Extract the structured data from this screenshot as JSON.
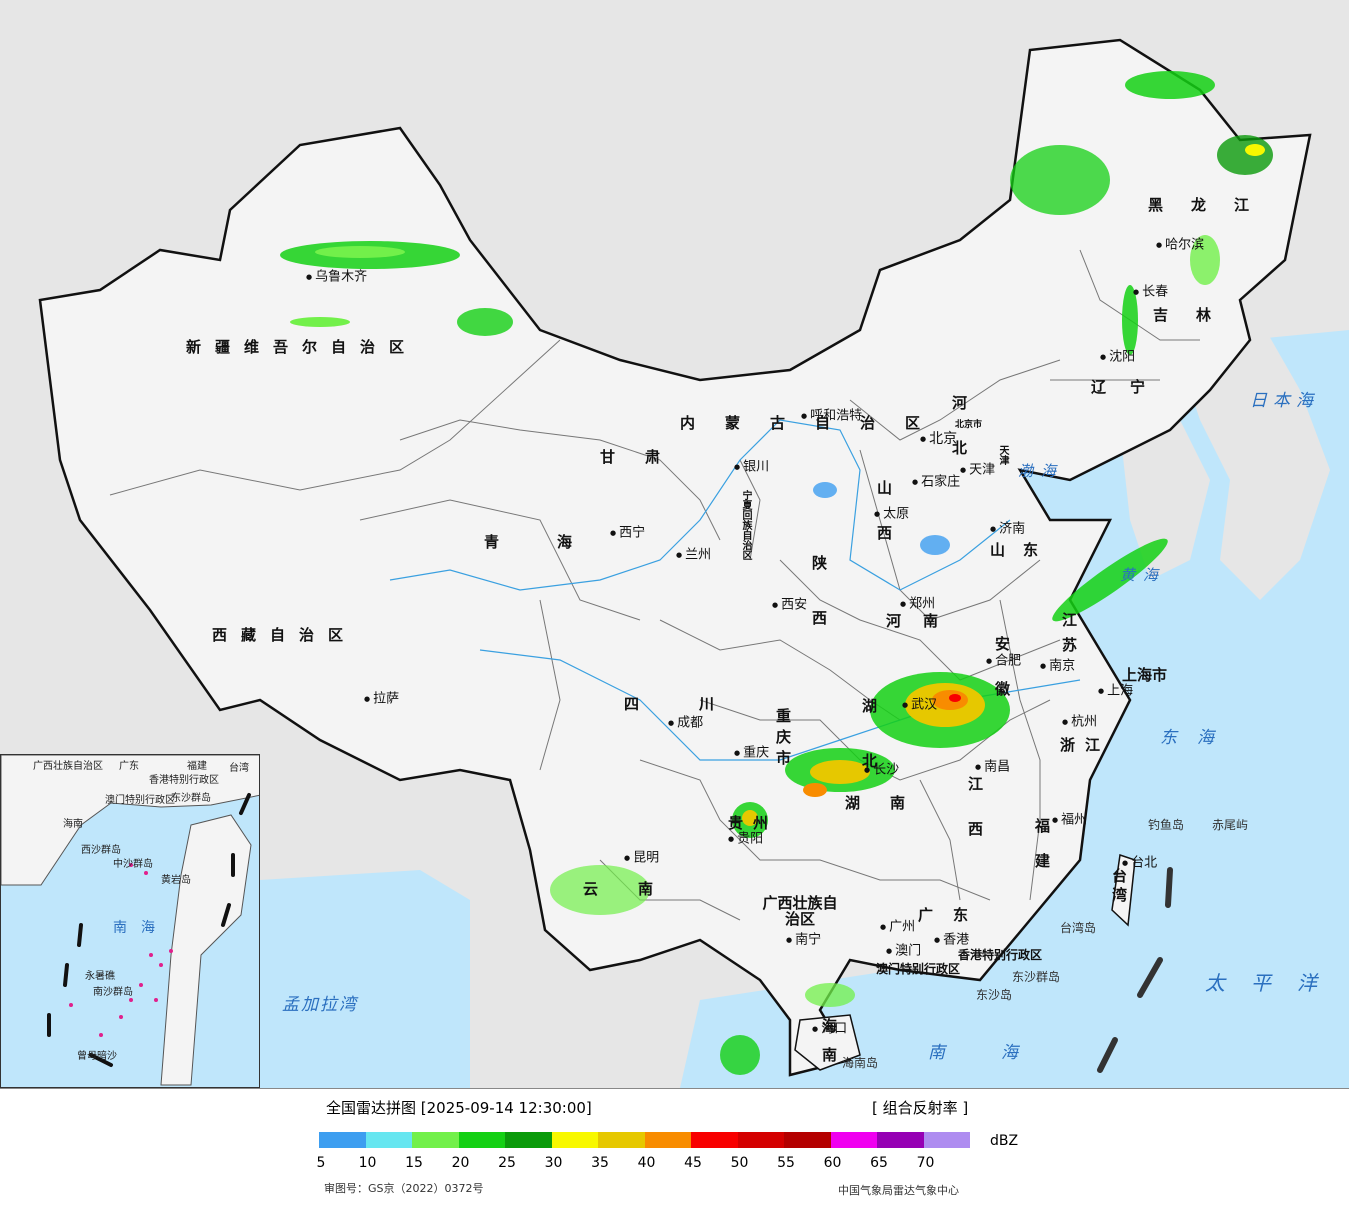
{
  "map": {
    "provinces": [
      {
        "id": "xinjiang",
        "label": "新疆维吾尔自治区"
      },
      {
        "id": "xizang",
        "label": "西藏自治区"
      },
      {
        "id": "qinghai",
        "label": "青海"
      },
      {
        "id": "gansu",
        "label": "甘肃"
      },
      {
        "id": "neimenggu",
        "label": "内蒙古自治区"
      },
      {
        "id": "heilongjiang",
        "label": "黑龙江"
      },
      {
        "id": "jilin",
        "label": "吉林"
      },
      {
        "id": "liaoning",
        "label": "辽宁"
      },
      {
        "id": "hebei",
        "label": "河北"
      },
      {
        "id": "shanxi",
        "label": "山西"
      },
      {
        "id": "shandong",
        "label": "山东"
      },
      {
        "id": "henan",
        "label": "河南"
      },
      {
        "id": "shaanxi",
        "label": "陕西"
      },
      {
        "id": "ningxia",
        "label": "宁夏回族自治区"
      },
      {
        "id": "sichuan",
        "label": "四川"
      },
      {
        "id": "chongqing",
        "label": "重庆市"
      },
      {
        "id": "hubei",
        "label": "湖北"
      },
      {
        "id": "hunan",
        "label": "湖南"
      },
      {
        "id": "jiangxi",
        "label": "江西"
      },
      {
        "id": "anhui",
        "label": "安徽"
      },
      {
        "id": "jiangsu",
        "label": "江苏"
      },
      {
        "id": "shanghai",
        "label": "上海市"
      },
      {
        "id": "zhejiang",
        "label": "浙江"
      },
      {
        "id": "fujian",
        "label": "福建"
      },
      {
        "id": "guizhou",
        "label": "贵州"
      },
      {
        "id": "yunnan",
        "label": "云南"
      },
      {
        "id": "guangxi",
        "label": "广西壮族自治区"
      },
      {
        "id": "guangdong",
        "label": "广东"
      },
      {
        "id": "hainan",
        "label": "海南"
      },
      {
        "id": "taiwan",
        "label": "台湾"
      },
      {
        "id": "hk",
        "label": "香港特别行政区"
      },
      {
        "id": "macau",
        "label": "澳门特别行政区"
      },
      {
        "id": "beijingshi",
        "label": "北京市"
      },
      {
        "id": "tianjinshi",
        "label": "天津"
      }
    ],
    "cities": [
      {
        "id": "urumqi",
        "label": "乌鲁木齐"
      },
      {
        "id": "lhasa",
        "label": "拉萨"
      },
      {
        "id": "xining",
        "label": "西宁"
      },
      {
        "id": "lanzhou",
        "label": "兰州"
      },
      {
        "id": "yinchuan",
        "label": "银川"
      },
      {
        "id": "hohhot",
        "label": "呼和浩特"
      },
      {
        "id": "beijing",
        "label": "北京"
      },
      {
        "id": "tianjin",
        "label": "天津"
      },
      {
        "id": "shijiazhuang",
        "label": "石家庄"
      },
      {
        "id": "taiyuan",
        "label": "太原"
      },
      {
        "id": "jinan",
        "label": "济南"
      },
      {
        "id": "zhengzhou",
        "label": "郑州"
      },
      {
        "id": "xian",
        "label": "西安"
      },
      {
        "id": "chengdu",
        "label": "成都"
      },
      {
        "id": "chongqing",
        "label": "重庆"
      },
      {
        "id": "wuhan",
        "label": "武汉"
      },
      {
        "id": "changsha",
        "label": "长沙"
      },
      {
        "id": "nanchang",
        "label": "南昌"
      },
      {
        "id": "hefei",
        "label": "合肥"
      },
      {
        "id": "nanjing",
        "label": "南京"
      },
      {
        "id": "shanghai",
        "label": "上海"
      },
      {
        "id": "hangzhou",
        "label": "杭州"
      },
      {
        "id": "fuzhou",
        "label": "福州"
      },
      {
        "id": "guiyang",
        "label": "贵阳"
      },
      {
        "id": "kunming",
        "label": "昆明"
      },
      {
        "id": "nanning",
        "label": "南宁"
      },
      {
        "id": "guangzhou",
        "label": "广州"
      },
      {
        "id": "hongkong",
        "label": "香港"
      },
      {
        "id": "macau",
        "label": "澳门"
      },
      {
        "id": "haikou",
        "label": "海口"
      },
      {
        "id": "taipei",
        "label": "台北"
      },
      {
        "id": "harbin",
        "label": "哈尔滨"
      },
      {
        "id": "changchun",
        "label": "长春"
      },
      {
        "id": "shenyang",
        "label": "沈阳"
      }
    ],
    "seas": [
      {
        "id": "japan",
        "label": "日本海"
      },
      {
        "id": "bohai",
        "label": "渤海"
      },
      {
        "id": "yellow",
        "label": "黄海"
      },
      {
        "id": "east",
        "label": "东海"
      },
      {
        "id": "pacific",
        "label": "太平洋"
      },
      {
        "id": "south",
        "label": "南海"
      },
      {
        "id": "bengal",
        "label": "孟加拉湾"
      }
    ],
    "islands": [
      {
        "id": "diaoyu",
        "label": "钓鱼岛"
      },
      {
        "id": "chiwei",
        "label": "赤尾屿"
      },
      {
        "id": "dongsha_grp",
        "label": "东沙群岛"
      },
      {
        "id": "dongsha",
        "label": "东沙岛"
      },
      {
        "id": "taiwan_isl",
        "label": "台湾岛"
      },
      {
        "id": "hainan_isl",
        "label": "海南岛"
      }
    ],
    "inset": {
      "labels": [
        "广西壮族自治区",
        "广东",
        "福建",
        "台湾",
        "香港特别行政区",
        "澳门特别行政区",
        "东沙群岛",
        "海南",
        "西沙群岛",
        "中沙群岛",
        "黄岩岛",
        "南海",
        "永暑礁",
        "南沙群岛",
        "曾母暗沙"
      ]
    },
    "colors": {
      "land": "#f4f4f4",
      "outside": "#e6e6e6",
      "sea": "#bfe6fb",
      "border": "#111111",
      "river": "#3aa0e0"
    }
  },
  "legend": {
    "title": "全国雷达拼图 [2025-09-14 12:30:00]",
    "product": "[ 组合反射率 ]",
    "unit": "dBZ",
    "ticks": [
      "5",
      "10",
      "15",
      "20",
      "25",
      "30",
      "35",
      "40",
      "45",
      "50",
      "55",
      "60",
      "65",
      "70"
    ],
    "colors": [
      "#3d9ef0",
      "#66e6f0",
      "#72f04a",
      "#14d014",
      "#0a9a0a",
      "#f8f800",
      "#e6c800",
      "#f88c00",
      "#f80000",
      "#d40000",
      "#b40000",
      "#f000f0",
      "#9600b4",
      "#ae8cf0"
    ],
    "approval": "审图号：GS京（2022）0372号",
    "source": "中国气象局雷达气象中心"
  }
}
